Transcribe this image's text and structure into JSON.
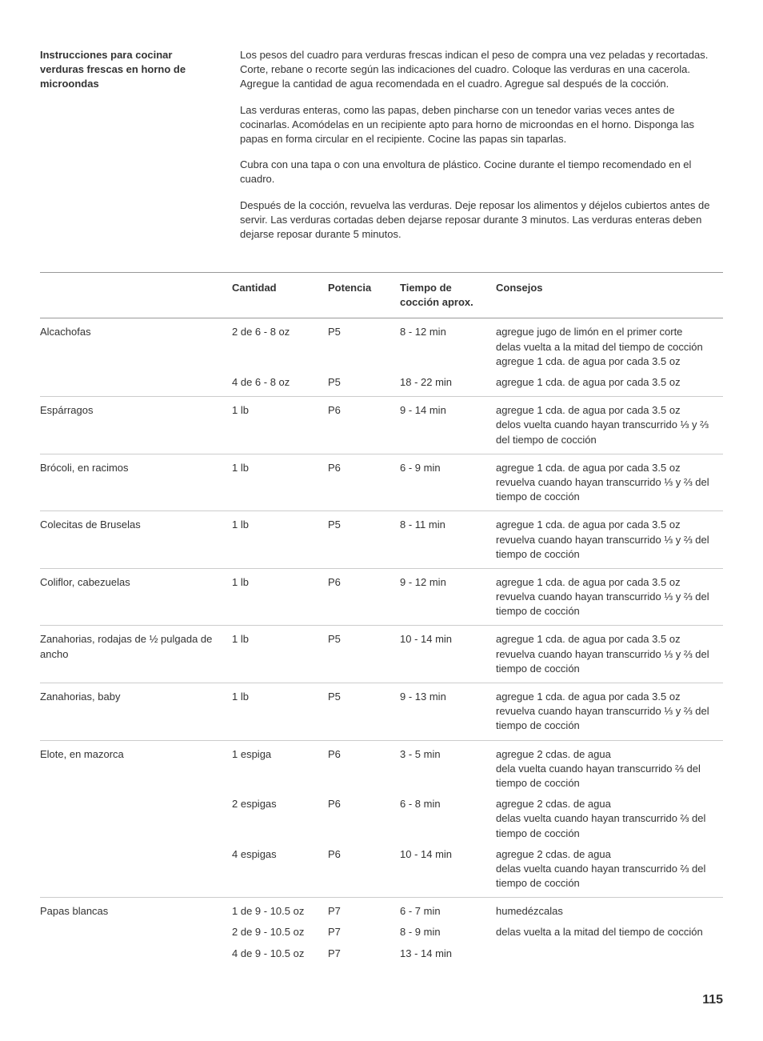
{
  "page_number": "115",
  "section_title": "Instrucciones para cocinar verduras frescas en horno de microondas",
  "intro_paragraphs": [
    "Los pesos del cuadro para verduras frescas indican el peso de compra una vez peladas y recortadas. Corte, rebane o recorte según las indicaciones del cuadro. Coloque las verduras en una cacerola. Agregue la cantidad de agua recomendada en el cuadro. Agregue sal después de la cocción.",
    "Las verduras enteras, como las papas, deben pincharse con un tenedor varias veces antes de cocinarlas. Acomódelas en un recipiente apto para horno de microondas en el horno. Disponga las papas en forma circular en el recipiente. Cocine las papas sin taparlas.",
    "Cubra con una tapa o con una envoltura de plástico. Cocine durante el tiempo recomendado en el cuadro.",
    "Después de la cocción, revuelva las verduras. Deje reposar los alimentos y déjelos cubiertos antes de servir. Las verduras cortadas deben dejarse reposar durante 3 minutos. Las verduras enteras deben dejarse reposar durante 5 minutos."
  ],
  "table": {
    "headers": {
      "name": "",
      "qty": "Cantidad",
      "power": "Potencia",
      "time": "Tiempo de cocción aprox.",
      "tips": "Consejos"
    },
    "rows": [
      {
        "group_start": true,
        "name": "Alcachofas",
        "qty": "2 de 6 - 8 oz",
        "power": "P5",
        "time": "8 - 12 min",
        "tips": "agregue jugo de limón en el primer corte\ndelas vuelta a la mitad del tiempo de cocción\nagregue 1 cda. de agua por cada 3.5 oz"
      },
      {
        "group_start": false,
        "name": "",
        "qty": "4 de 6 - 8 oz",
        "power": "P5",
        "time": "18 - 22 min",
        "tips": "agregue 1 cda. de agua por cada 3.5 oz"
      },
      {
        "group_start": true,
        "name": "Espárragos",
        "qty": "1 lb",
        "power": "P6",
        "time": "9 - 14 min",
        "tips": "agregue 1 cda. de agua por cada 3.5 oz\ndelos vuelta cuando hayan transcurrido ⅓ y ⅔ del tiempo de cocción"
      },
      {
        "group_start": true,
        "name": "Brócoli, en racimos",
        "qty": "1 lb",
        "power": "P6",
        "time": "6 - 9 min",
        "tips": "agregue 1 cda. de agua por cada 3.5 oz\nrevuelva cuando hayan transcurrido ⅓ y ⅔ del tiempo de cocción"
      },
      {
        "group_start": true,
        "name": "Colecitas de Bruselas",
        "qty": "1 lb",
        "power": "P5",
        "time": "8 - 11 min",
        "tips": "agregue 1 cda. de agua por cada 3.5 oz\nrevuelva cuando hayan transcurrido ⅓ y ⅔ del tiempo de cocción"
      },
      {
        "group_start": true,
        "name": "Coliflor, cabezuelas",
        "qty": "1 lb",
        "power": "P6",
        "time": "9 - 12 min",
        "tips": "agregue 1 cda. de agua por cada 3.5 oz\nrevuelva cuando hayan transcurrido ⅓ y ⅔ del tiempo de cocción"
      },
      {
        "group_start": true,
        "name": "Zanahorias, rodajas de ½ pulgada de ancho",
        "qty": "1 lb",
        "power": "P5",
        "time": "10 - 14 min",
        "tips": "agregue 1 cda. de agua por cada 3.5 oz\nrevuelva cuando hayan transcurrido ⅓ y ⅔ del tiempo de cocción"
      },
      {
        "group_start": true,
        "name": "Zanahorias, baby",
        "qty": "1 lb",
        "power": "P5",
        "time": "9 - 13 min",
        "tips": "agregue 1 cda. de agua por cada 3.5 oz\nrevuelva cuando hayan transcurrido ⅓ y ⅔ del tiempo de cocción"
      },
      {
        "group_start": true,
        "name": "Elote, en mazorca",
        "qty": "1 espiga",
        "power": "P6",
        "time": "3 - 5 min",
        "tips": "agregue 2 cdas. de agua\ndela vuelta cuando hayan transcurrido ⅔ del tiempo de cocción"
      },
      {
        "group_start": false,
        "name": "",
        "qty": "2 espigas",
        "power": "P6",
        "time": "6 - 8 min",
        "tips": "agregue 2 cdas. de agua\ndelas vuelta cuando hayan transcurrido ⅔ del tiempo de cocción"
      },
      {
        "group_start": false,
        "name": "",
        "qty": "4 espigas",
        "power": "P6",
        "time": "10 - 14 min",
        "tips": "agregue 2 cdas. de agua\ndelas vuelta cuando hayan transcurrido ⅔ del tiempo de cocción"
      },
      {
        "group_start": true,
        "name": "Papas blancas",
        "qty": "1 de 9 - 10.5 oz",
        "power": "P7",
        "time": "6 - 7 min",
        "tips": "humedézcalas"
      },
      {
        "group_start": false,
        "name": "",
        "qty": "2 de 9 - 10.5 oz",
        "power": "P7",
        "time": "8 - 9 min",
        "tips": "delas vuelta a la mitad del tiempo de cocción"
      },
      {
        "group_start": false,
        "name": "",
        "qty": "4 de 9 - 10.5 oz",
        "power": "P7",
        "time": "13 - 14 min",
        "tips": ""
      }
    ]
  }
}
